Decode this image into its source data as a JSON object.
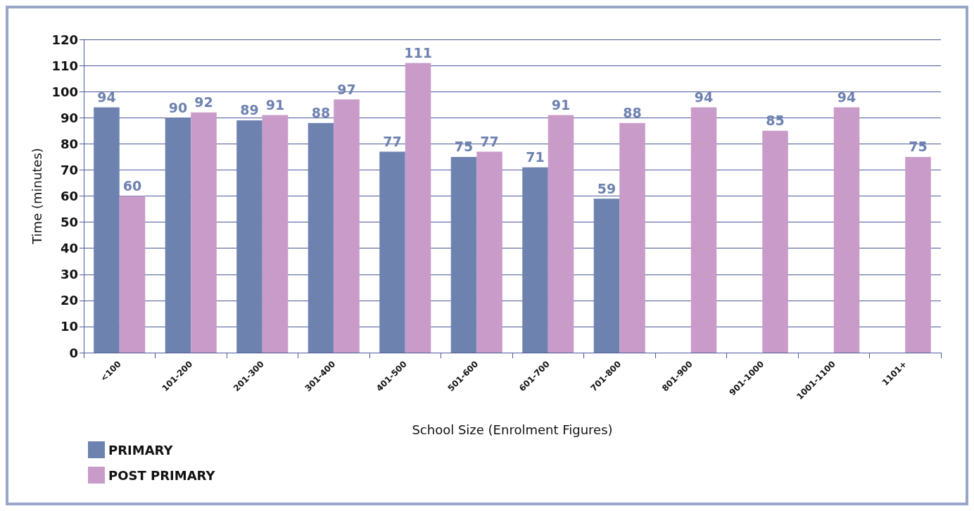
{
  "chart_data": {
    "type": "bar",
    "ylabel": "Time (minutes)",
    "xlabel": "School Size (Enrolment Figures)",
    "categories": [
      "<100",
      "101-200",
      "201-300",
      "301-400",
      "401-500",
      "501-600",
      "601-700",
      "701-800",
      "801-900",
      "901-1000",
      "1001-1100",
      "1101+"
    ],
    "series": [
      {
        "name": "PRIMARY",
        "color": "#6e82b0",
        "values": [
          94,
          90,
          89,
          88,
          77,
          75,
          71,
          59,
          null,
          null,
          null,
          null
        ]
      },
      {
        "name": "POST PRIMARY",
        "color": "#c99bc9",
        "values": [
          60,
          92,
          91,
          97,
          111,
          77,
          91,
          88,
          94,
          85,
          94,
          75
        ]
      }
    ],
    "ylim": [
      0,
      120
    ],
    "yticks": [
      0,
      10,
      20,
      30,
      40,
      50,
      60,
      70,
      80,
      90,
      100,
      110,
      120
    ],
    "grid": "y",
    "legend": "bottom left",
    "data_labels": true
  }
}
